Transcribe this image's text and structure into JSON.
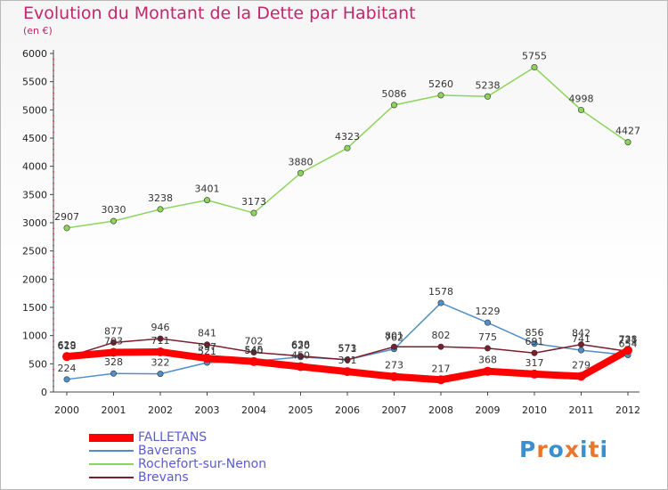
{
  "chart_data": {
    "type": "line",
    "title": "Evolution du Montant de la Dette par Habitant",
    "subtitle": "(en €)",
    "categories": [
      "2000",
      "2001",
      "2002",
      "2003",
      "2004",
      "2005",
      "2006",
      "2007",
      "2008",
      "2009",
      "2010",
      "2011",
      "2012"
    ],
    "ylim": [
      0,
      6000
    ],
    "yticks": [
      "0",
      "500",
      "1000",
      "1500",
      "2000",
      "2500",
      "3000",
      "3500",
      "4000",
      "4500",
      "5000",
      "5500",
      "6000"
    ],
    "grid": false,
    "legend_position": "bottom-left",
    "series": [
      {
        "name": "FALLETANS",
        "color": "#ff0000",
        "values": [
          629,
          703,
          711,
          597,
          540,
          450,
          361,
          273,
          217,
          368,
          317,
          279,
          738
        ],
        "labels": [
          "629",
          "703",
          "711",
          "597",
          "540",
          "450",
          "361",
          "273",
          "217",
          "368",
          "317",
          "279",
          "738"
        ]
      },
      {
        "name": "Baverans",
        "color": "#4f8ec9",
        "values": [
          224,
          328,
          322,
          521,
          545,
          620,
          573,
          762,
          1578,
          1229,
          856,
          741,
          654
        ],
        "labels": [
          "224",
          "328",
          "322",
          "521",
          "545",
          "620",
          "573",
          "762",
          "1578",
          "1229",
          "856",
          "741",
          "654"
        ]
      },
      {
        "name": "Rochefort-sur-Nenon",
        "color": "#8dd45c",
        "values": [
          2907,
          3030,
          3238,
          3401,
          3173,
          3880,
          4323,
          5086,
          5260,
          5238,
          5755,
          4998,
          4427
        ],
        "labels": [
          "2907",
          "3030",
          "3238",
          "3401",
          "3173",
          "3880",
          "4323",
          "5086",
          "5260",
          "5238",
          "5755",
          "4998",
          "4427"
        ]
      },
      {
        "name": "Brevans",
        "color": "#7a1f2e",
        "values": [
          618,
          877,
          946,
          841,
          702,
          638,
          571,
          801,
          802,
          775,
          691,
          842,
          721
        ],
        "labels": [
          "618",
          "877",
          "946",
          "841",
          "702",
          "638",
          "571",
          "801",
          "802",
          "775",
          "691",
          "842",
          "721"
        ]
      }
    ]
  },
  "logo": {
    "text": "Proxiti",
    "letter_colors": [
      "#3a8fd1",
      "#e8762d",
      "#3a8fd1",
      "#e8762d",
      "#3a8fd1",
      "#e8762d",
      "#3a8fd1"
    ]
  }
}
